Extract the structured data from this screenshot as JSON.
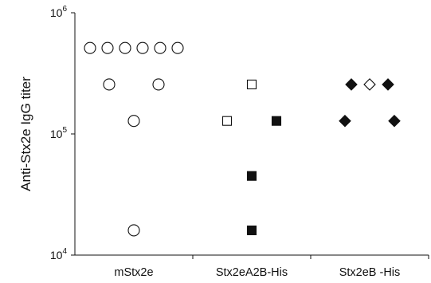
{
  "chart_data": {
    "type": "scatter",
    "ylabel": "Anti-Stx2e IgG titer",
    "yscale": "log",
    "ylim": [
      10000,
      1000000
    ],
    "yticks": [
      {
        "value": 10000,
        "base": "10",
        "exp": "4"
      },
      {
        "value": 100000,
        "base": "10",
        "exp": "5"
      },
      {
        "value": 1000000,
        "base": "10",
        "exp": "6"
      }
    ],
    "categories": [
      "mStx2e",
      "Stx2eA2B-His",
      "Stx2eB -His"
    ],
    "grid": false,
    "series": [
      {
        "category": "mStx2e",
        "points": [
          {
            "value": 512000,
            "marker": "circle-open"
          },
          {
            "value": 512000,
            "marker": "circle-open"
          },
          {
            "value": 512000,
            "marker": "circle-open"
          },
          {
            "value": 512000,
            "marker": "circle-open"
          },
          {
            "value": 512000,
            "marker": "circle-open"
          },
          {
            "value": 512000,
            "marker": "circle-open"
          },
          {
            "value": 256000,
            "marker": "circle-open"
          },
          {
            "value": 256000,
            "marker": "circle-open"
          },
          {
            "value": 128000,
            "marker": "circle-open"
          },
          {
            "value": 16000,
            "marker": "circle-open"
          }
        ]
      },
      {
        "category": "Stx2eA2B-His",
        "points": [
          {
            "value": 256000,
            "marker": "square-open"
          },
          {
            "value": 128000,
            "marker": "square-open"
          },
          {
            "value": 128000,
            "marker": "square-filled"
          },
          {
            "value": 45000,
            "marker": "square-filled"
          },
          {
            "value": 16000,
            "marker": "square-filled"
          }
        ]
      },
      {
        "category": "Stx2eB -His",
        "points": [
          {
            "value": 256000,
            "marker": "diamond-filled"
          },
          {
            "value": 256000,
            "marker": "diamond-open"
          },
          {
            "value": 256000,
            "marker": "diamond-filled"
          },
          {
            "value": 128000,
            "marker": "diamond-filled"
          },
          {
            "value": 128000,
            "marker": "diamond-filled"
          }
        ]
      }
    ]
  }
}
